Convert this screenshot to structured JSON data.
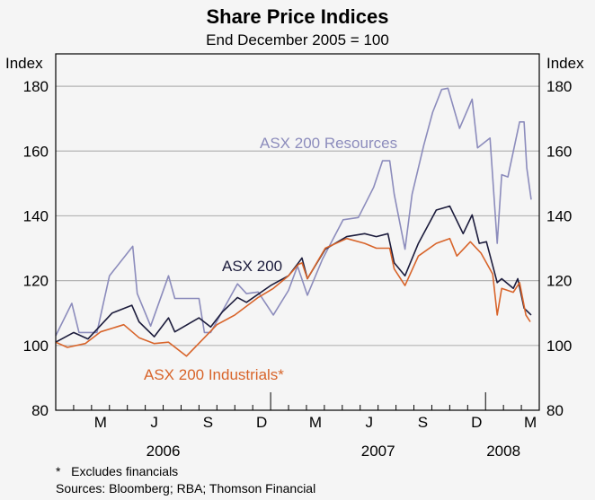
{
  "chart_data": {
    "type": "line",
    "title": "Share Price Indices",
    "subtitle": "End December 2005 = 100",
    "ylabel_left": "Index",
    "ylabel_right": "Index",
    "ylim": [
      80,
      180
    ],
    "yticks": [
      80,
      100,
      120,
      140,
      160,
      180
    ],
    "x_unit": "months since start of January 2006",
    "xlim": [
      0,
      27
    ],
    "month_labels": [
      {
        "label": "M",
        "month": 2
      },
      {
        "label": "J",
        "month": 5
      },
      {
        "label": "S",
        "month": 8
      },
      {
        "label": "D",
        "month": 11
      },
      {
        "label": "M",
        "month": 14
      },
      {
        "label": "J",
        "month": 17
      },
      {
        "label": "S",
        "month": 20
      },
      {
        "label": "D",
        "month": 23
      },
      {
        "label": "M",
        "month": 26
      }
    ],
    "year_labels": [
      {
        "label": "2006",
        "center": 6
      },
      {
        "label": "2007",
        "center": 18
      },
      {
        "label": "2008",
        "center": 25
      }
    ],
    "year_boundaries": [
      12,
      24
    ],
    "grid": true,
    "series": [
      {
        "name": "ASX 200 Resources",
        "color": "#8c8cbc",
        "x": [
          0,
          0.9,
          1.3,
          2.3,
          3.0,
          4.3,
          4.55,
          5.3,
          6.3,
          6.65,
          8.0,
          8.3,
          8.65,
          10.15,
          10.65,
          11.3,
          12.15,
          13.0,
          13.5,
          14.05,
          14.9,
          16.05,
          16.9,
          17.75,
          18.25,
          18.65,
          18.9,
          19.5,
          19.9,
          20.55,
          21.05,
          21.55,
          21.9,
          22.55,
          23.25,
          23.55,
          24.25,
          24.65,
          24.9,
          25.25,
          25.9,
          26.15,
          26.3,
          26.55
        ],
        "y": [
          103,
          113,
          104,
          104,
          121.5,
          130.6,
          116,
          106,
          121.5,
          114.5,
          114.5,
          104,
          104,
          119,
          116,
          116.5,
          109.4,
          117,
          124.5,
          115.5,
          126.7,
          138.8,
          139.5,
          148.8,
          157,
          157,
          146.7,
          129.7,
          146.7,
          161.8,
          172,
          179,
          179.4,
          167,
          176,
          161,
          164,
          131.5,
          152.7,
          152,
          169,
          169,
          154.8,
          145
        ]
      },
      {
        "name": "ASX 200",
        "color": "#1c1c3c",
        "x": [
          0,
          1.0,
          1.8,
          3.15,
          4.25,
          4.65,
          5.5,
          6.3,
          6.65,
          8.0,
          8.65,
          9.3,
          10.15,
          10.65,
          12.0,
          13.0,
          13.55,
          13.75,
          14.05,
          15.05,
          16.25,
          17.25,
          17.9,
          18.55,
          18.9,
          19.5,
          20.25,
          21.25,
          22.0,
          22.75,
          23.25,
          23.65,
          24.05,
          24.65,
          24.9,
          25.55,
          25.8,
          26.15,
          26.55
        ],
        "y": [
          101,
          104,
          102,
          110,
          112.4,
          107.3,
          102.7,
          108.5,
          104.2,
          108.5,
          105.7,
          110.3,
          114.8,
          113.3,
          118.5,
          121.5,
          125.5,
          127,
          120.6,
          129.7,
          133.6,
          134.5,
          133.6,
          134.5,
          125.5,
          121.5,
          131.5,
          141.8,
          143,
          134.5,
          140.3,
          131.5,
          132,
          119.4,
          120.6,
          117.6,
          120.6,
          111.5,
          109.4
        ]
      },
      {
        "name": "ASX 200 Industrials*",
        "color": "#d8642a",
        "x": [
          0,
          0.65,
          1.65,
          2.5,
          3.8,
          4.65,
          5.5,
          6.3,
          7.3,
          8.3,
          9.0,
          10.0,
          11.3,
          12.15,
          13.0,
          13.55,
          13.75,
          14.05,
          15.05,
          16.25,
          17.25,
          17.9,
          18.65,
          18.9,
          19.5,
          20.25,
          21.25,
          22.0,
          22.4,
          23.15,
          23.75,
          24.4,
          24.65,
          24.9,
          25.55,
          25.9,
          26.25,
          26.5
        ],
        "y": [
          101,
          99.4,
          100.6,
          104.2,
          106.4,
          102.4,
          100.6,
          101,
          96.7,
          102.4,
          106.4,
          109.4,
          114.8,
          117.6,
          121.5,
          125,
          125.5,
          120.6,
          130,
          133,
          131.5,
          130,
          130,
          123.6,
          118.5,
          127.6,
          131.5,
          133,
          127.6,
          132,
          128.5,
          122,
          109.4,
          117.6,
          116.4,
          119.4,
          109.4,
          107.3
        ]
      }
    ],
    "annotations": [
      {
        "text": "ASX 200 Resources",
        "series": "ASX 200 Resources"
      },
      {
        "text": "ASX 200",
        "series": "ASX 200"
      },
      {
        "text": "ASX 200 Industrials*",
        "series": "ASX 200 Industrials*"
      }
    ],
    "footnote": "*   Excludes financials",
    "sources": "Sources: Bloomberg; RBA; Thomson Financial"
  }
}
